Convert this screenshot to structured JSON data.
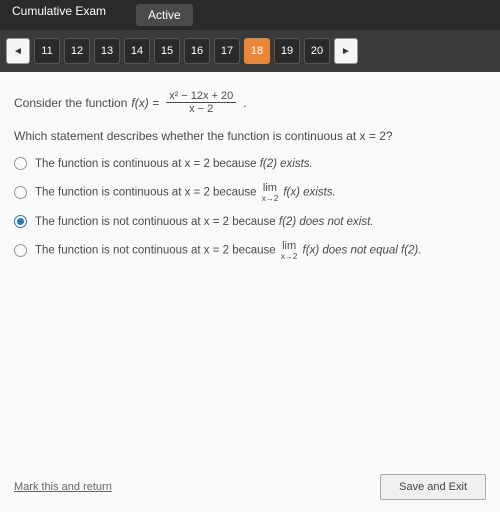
{
  "header": {
    "exam_title": "Cumulative Exam",
    "status": "Active"
  },
  "nav": {
    "prev_arrow": "◄",
    "next_arrow": "►",
    "items": [
      "11",
      "12",
      "13",
      "14",
      "15",
      "16",
      "17",
      "18",
      "19",
      "20"
    ],
    "current": "18"
  },
  "question": {
    "stem_prefix": "Consider the function ",
    "fx_label": "f(x) = ",
    "numerator": "x² − 12x + 20",
    "denominator": "x − 2",
    "prompt": "Which statement describes whether the function is continuous at x = 2?"
  },
  "options": [
    {
      "text_pre": "The function is continuous at x = 2 because ",
      "mid": "f(2) exists.",
      "has_limit": false,
      "selected": false
    },
    {
      "text_pre": "The function is continuous at x = 2 because ",
      "lim_top": "lim",
      "lim_bot": "x→2",
      "mid": " f(x) exists.",
      "has_limit": true,
      "selected": false
    },
    {
      "text_pre": "The function is not continuous at x = 2 because ",
      "mid": "f(2) does not exist.",
      "has_limit": false,
      "selected": true
    },
    {
      "text_pre": "The function is not continuous at x = 2 because ",
      "lim_top": "lim",
      "lim_bot": "x→2",
      "mid": " f(x) does not equal f(2).",
      "has_limit": true,
      "selected": false
    }
  ],
  "footer": {
    "mark_return": "Mark this and return",
    "save_exit": "Save and Exit"
  },
  "colors": {
    "header_bg": "#2a2a2a",
    "nav_bg": "#3a3a3a",
    "current_bg": "#e8873a",
    "content_bg": "#fafafa",
    "radio_selected": "#2a7ab0",
    "text": "#4a4a4a"
  }
}
